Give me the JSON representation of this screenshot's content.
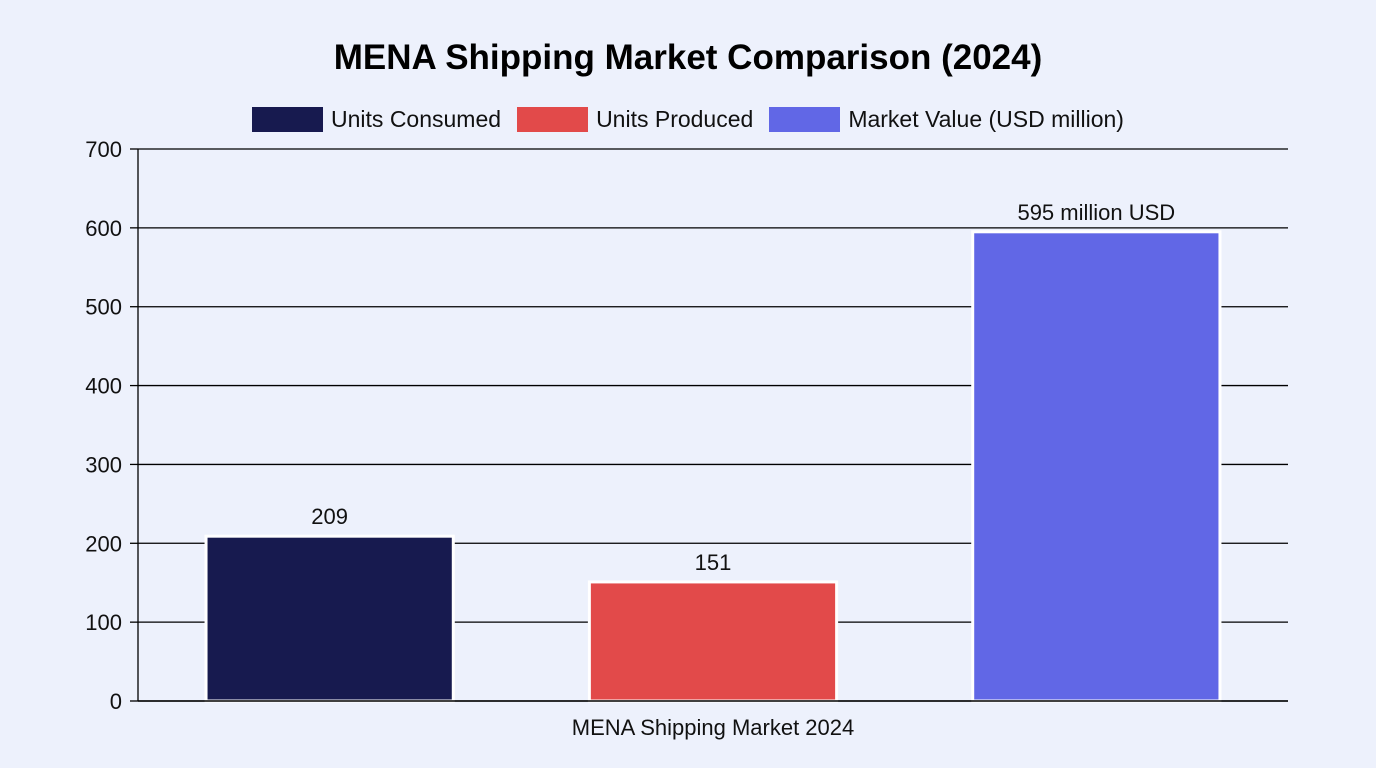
{
  "chart_data": {
    "type": "bar",
    "title": "MENA Shipping Market Comparison (2024)",
    "xlabel": "",
    "ylabel": "",
    "ylim": [
      0,
      700
    ],
    "yticks": [
      0,
      100,
      200,
      300,
      400,
      500,
      600,
      700
    ],
    "categories": [
      "MENA Shipping Market 2024"
    ],
    "grid": true,
    "legend_position": "top-center",
    "series": [
      {
        "name": "Units Consumed",
        "values": [
          209
        ],
        "color": "#171a4f",
        "data_label": "209"
      },
      {
        "name": "Units Produced",
        "values": [
          151
        ],
        "color": "#e24a4a",
        "data_label": "151"
      },
      {
        "name": "Market Value (USD million)",
        "values": [
          595
        ],
        "color": "#6167e6",
        "data_label": "595 million USD"
      }
    ]
  }
}
